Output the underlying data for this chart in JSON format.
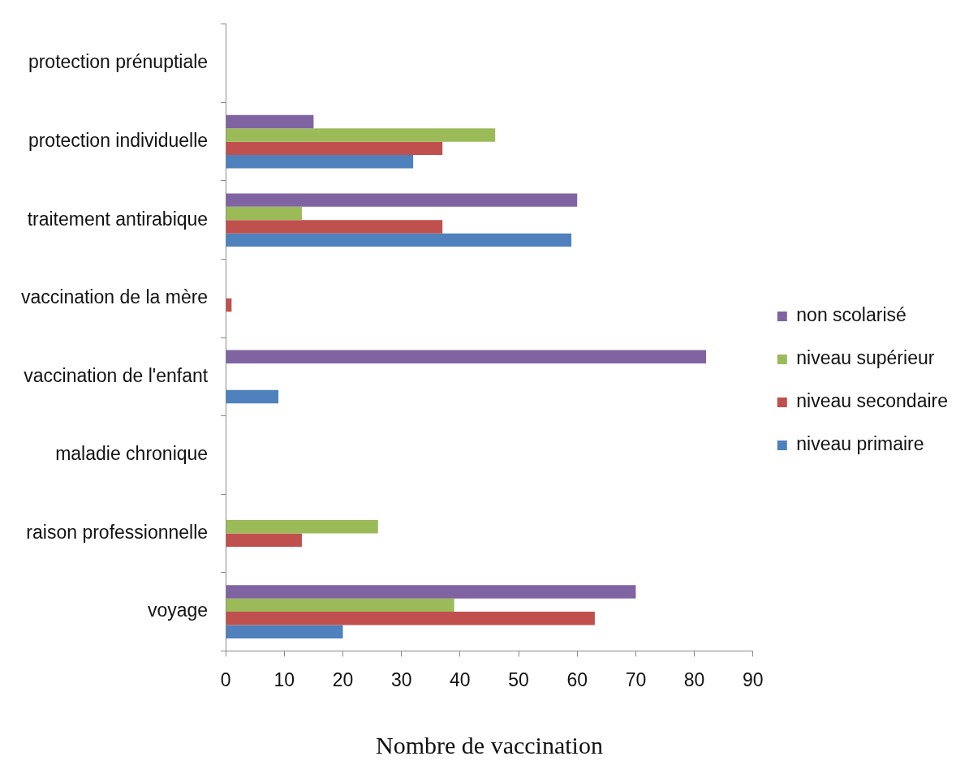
{
  "chart_data": {
    "type": "bar",
    "orientation": "horizontal",
    "xlabel": "Nombre de vaccination",
    "categories": [
      "protection prénuptiale",
      "protection individuelle",
      "traitement antirabique",
      "vaccination de la mère",
      "vaccination de l'enfant",
      "maladie chronique",
      "raison professionnelle",
      "voyage"
    ],
    "series": [
      {
        "name": "non scolarisé",
        "color": "#8064a2",
        "values": [
          null,
          15,
          60,
          null,
          82,
          null,
          null,
          70
        ]
      },
      {
        "name": "niveau supérieur",
        "color": "#9bbb59",
        "values": [
          null,
          46,
          13,
          null,
          null,
          null,
          26,
          39
        ]
      },
      {
        "name": "niveau secondaire",
        "color": "#c0504d",
        "values": [
          null,
          37,
          37,
          1,
          null,
          null,
          13,
          63
        ]
      },
      {
        "name": "niveau primaire",
        "color": "#4f81bd",
        "values": [
          null,
          32,
          59,
          null,
          9,
          null,
          null,
          20
        ]
      }
    ],
    "xlim": [
      0,
      90
    ],
    "xticks": [
      0,
      10,
      20,
      30,
      40,
      50,
      60,
      70,
      80,
      90
    ],
    "grid": false,
    "legend": "right"
  }
}
